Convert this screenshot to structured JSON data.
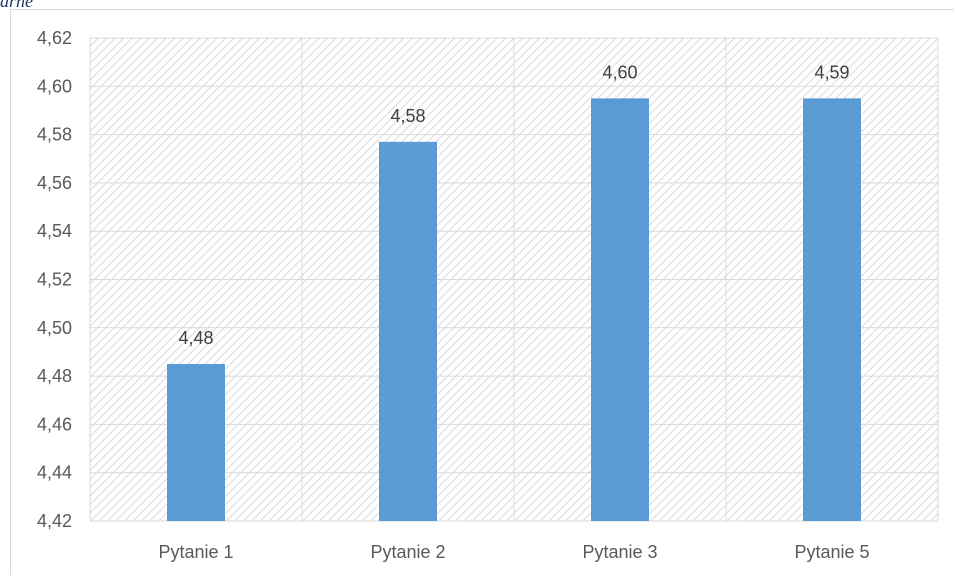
{
  "header": {
    "fragment": "arne"
  },
  "chart_data": {
    "type": "bar",
    "categories": [
      "Pytanie 1",
      "Pytanie 2",
      "Pytanie 3",
      "Pytanie 5"
    ],
    "values": [
      4.485,
      4.577,
      4.595,
      4.595
    ],
    "data_labels": [
      "4,48",
      "4,58",
      "4,60",
      "4,59"
    ],
    "yticks": [
      "4,42",
      "4,44",
      "4,46",
      "4,48",
      "4,50",
      "4,52",
      "4,54",
      "4,56",
      "4,58",
      "4,60",
      "4,62"
    ],
    "ylim": [
      4.42,
      4.62
    ],
    "ystep": 0.02,
    "grid": true,
    "bar_color": "#5b9bd5",
    "plot_background": "hatched"
  }
}
